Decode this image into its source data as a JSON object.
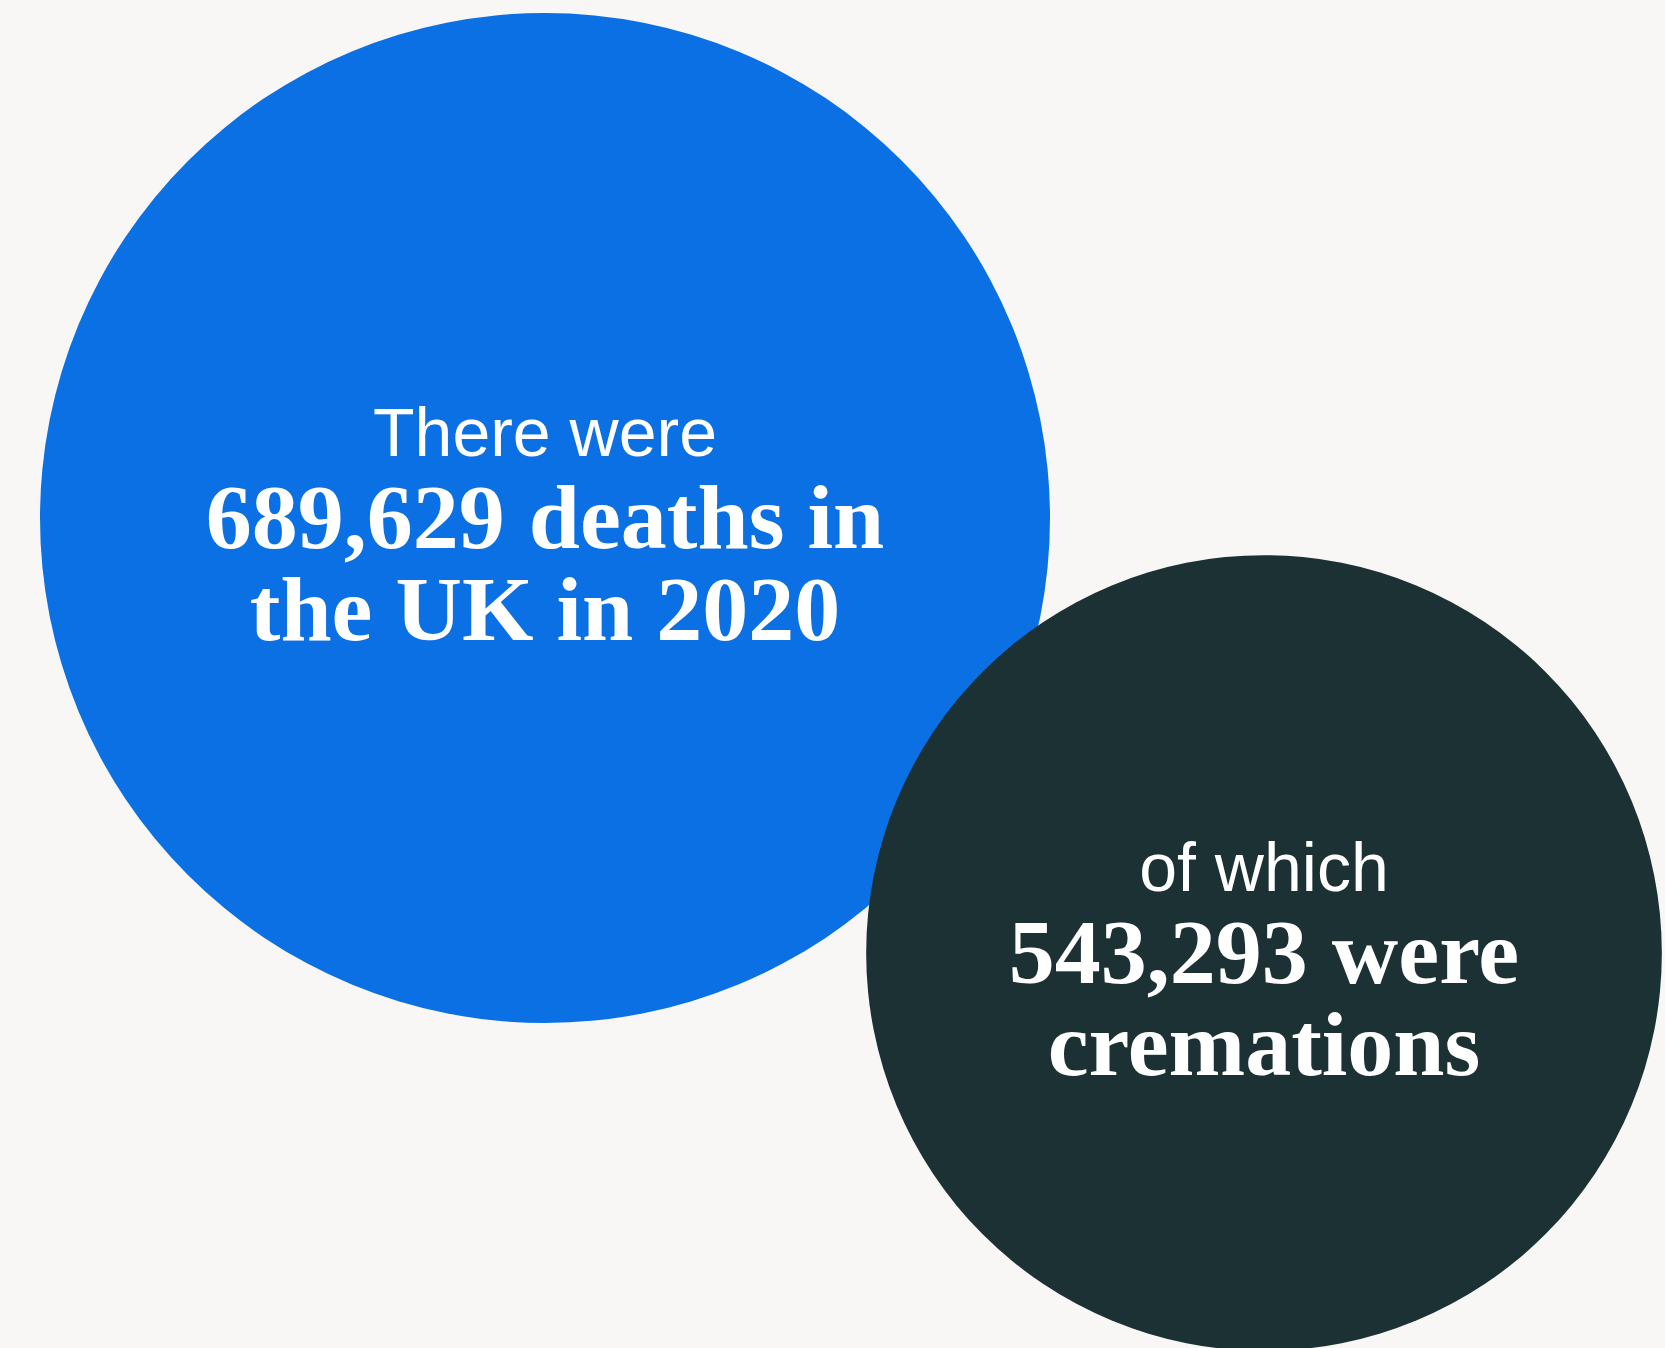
{
  "chart_data": {
    "type": "other",
    "categories": [
      "deaths in the UK in 2020",
      "were cremations"
    ],
    "values": [
      689629,
      543293
    ],
    "value_labels": [
      "689,629",
      "543,293"
    ],
    "colors": [
      "#0b70e3",
      "#1b3133"
    ],
    "annotations": [
      "There were",
      "of which"
    ]
  }
}
